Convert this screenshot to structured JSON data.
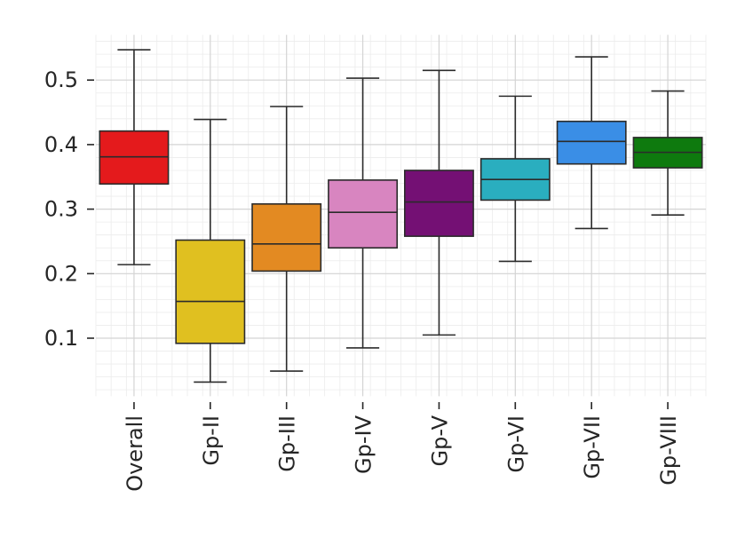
{
  "chart_data": {
    "type": "boxplot",
    "title": "",
    "xlabel": "",
    "ylabel": "",
    "ylim": [
      0.01,
      0.57
    ],
    "yticks": [
      0.1,
      0.2,
      0.3,
      0.4,
      0.5
    ],
    "ytick_labels": [
      "0.1",
      "0.2",
      "0.3",
      "0.4",
      "0.5"
    ],
    "grid": true,
    "categories": [
      "Overall",
      "Gp-II",
      "Gp-III",
      "Gp-IV",
      "Gp-V",
      "Gp-VI",
      "Gp-VII",
      "Gp-VIII"
    ],
    "series": [
      {
        "name": "Overall",
        "color": "#e41a1c",
        "min": 0.214,
        "q1": 0.339,
        "median": 0.381,
        "q3": 0.421,
        "max": 0.547
      },
      {
        "name": "Gp-II",
        "color": "#e0c020",
        "min": 0.032,
        "q1": 0.092,
        "median": 0.157,
        "q3": 0.252,
        "max": 0.439
      },
      {
        "name": "Gp-III",
        "color": "#e38a22",
        "min": 0.049,
        "q1": 0.204,
        "median": 0.246,
        "q3": 0.308,
        "max": 0.459
      },
      {
        "name": "Gp-IV",
        "color": "#d885c0",
        "min": 0.085,
        "q1": 0.24,
        "median": 0.295,
        "q3": 0.345,
        "max": 0.503
      },
      {
        "name": "Gp-V",
        "color": "#741074",
        "min": 0.105,
        "q1": 0.258,
        "median": 0.311,
        "q3": 0.36,
        "max": 0.515
      },
      {
        "name": "Gp-VI",
        "color": "#2aaebf",
        "min": 0.219,
        "q1": 0.314,
        "median": 0.346,
        "q3": 0.378,
        "max": 0.475
      },
      {
        "name": "Gp-VII",
        "color": "#3a8ee6",
        "min": 0.27,
        "q1": 0.37,
        "median": 0.405,
        "q3": 0.436,
        "max": 0.536
      },
      {
        "name": "Gp-VIII",
        "color": "#0e7a0e",
        "min": 0.291,
        "q1": 0.364,
        "median": 0.388,
        "q3": 0.411,
        "max": 0.483
      }
    ]
  }
}
